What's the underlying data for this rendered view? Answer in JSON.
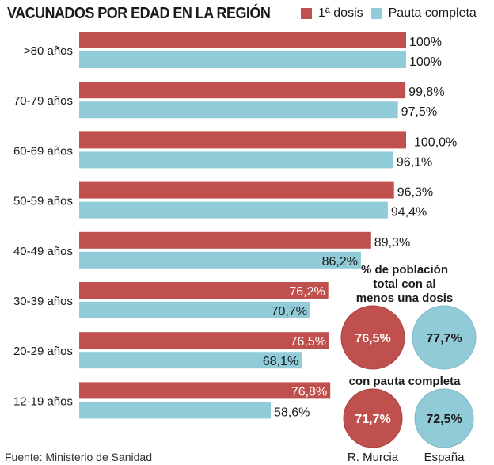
{
  "chart_data": {
    "type": "bar",
    "orientation": "horizontal",
    "title": "VACUNADOS POR EDAD EN LA REGIÓN",
    "legend": {
      "placement": "top-right",
      "entries": [
        "1ª dosis",
        "Pauta completa"
      ]
    },
    "categories": [
      ">80 años",
      "70-79 años",
      "60-69 años",
      "50-59 años",
      "40-49 años",
      "30-39 años",
      "20-29 años",
      "12-19 años"
    ],
    "series": [
      {
        "name": "1ª dosis",
        "color": "#c0504d",
        "values": [
          100,
          99.8,
          100.0,
          96.3,
          89.3,
          76.2,
          76.5,
          76.8
        ],
        "labels": [
          "100%",
          "99,8%",
          "100,0%",
          "96,3%",
          "89,3%",
          "76,2%",
          "76,5%",
          "76,8%"
        ]
      },
      {
        "name": "Pauta completa",
        "color": "#92cbd8",
        "values": [
          100,
          97.5,
          96.1,
          94.4,
          86.2,
          70.7,
          68.1,
          58.6
        ],
        "labels": [
          "100%",
          "97,5%",
          "96,1%",
          "94,4%",
          "86,2%",
          "70,7%",
          "68,1%",
          "58,6%"
        ]
      }
    ],
    "xlim": [
      0,
      100
    ],
    "grid": false,
    "side_panel": {
      "heading_one_dose": [
        "% de población",
        "total con al",
        "menos una dosis"
      ],
      "heading_full": "con pauta completa",
      "regions": [
        "R. Murcia",
        "España"
      ],
      "one_dose": [
        {
          "label": "76,5%",
          "value": 76.5
        },
        {
          "label": "77,7%",
          "value": 77.7
        }
      ],
      "full": [
        {
          "label": "71,7%",
          "value": 71.7
        },
        {
          "label": "72,5%",
          "value": 72.5
        }
      ]
    },
    "source": "Fuente: Ministerio de Sanidad"
  },
  "colors": {
    "red": "#c0504d",
    "blue": "#92cbd8"
  }
}
